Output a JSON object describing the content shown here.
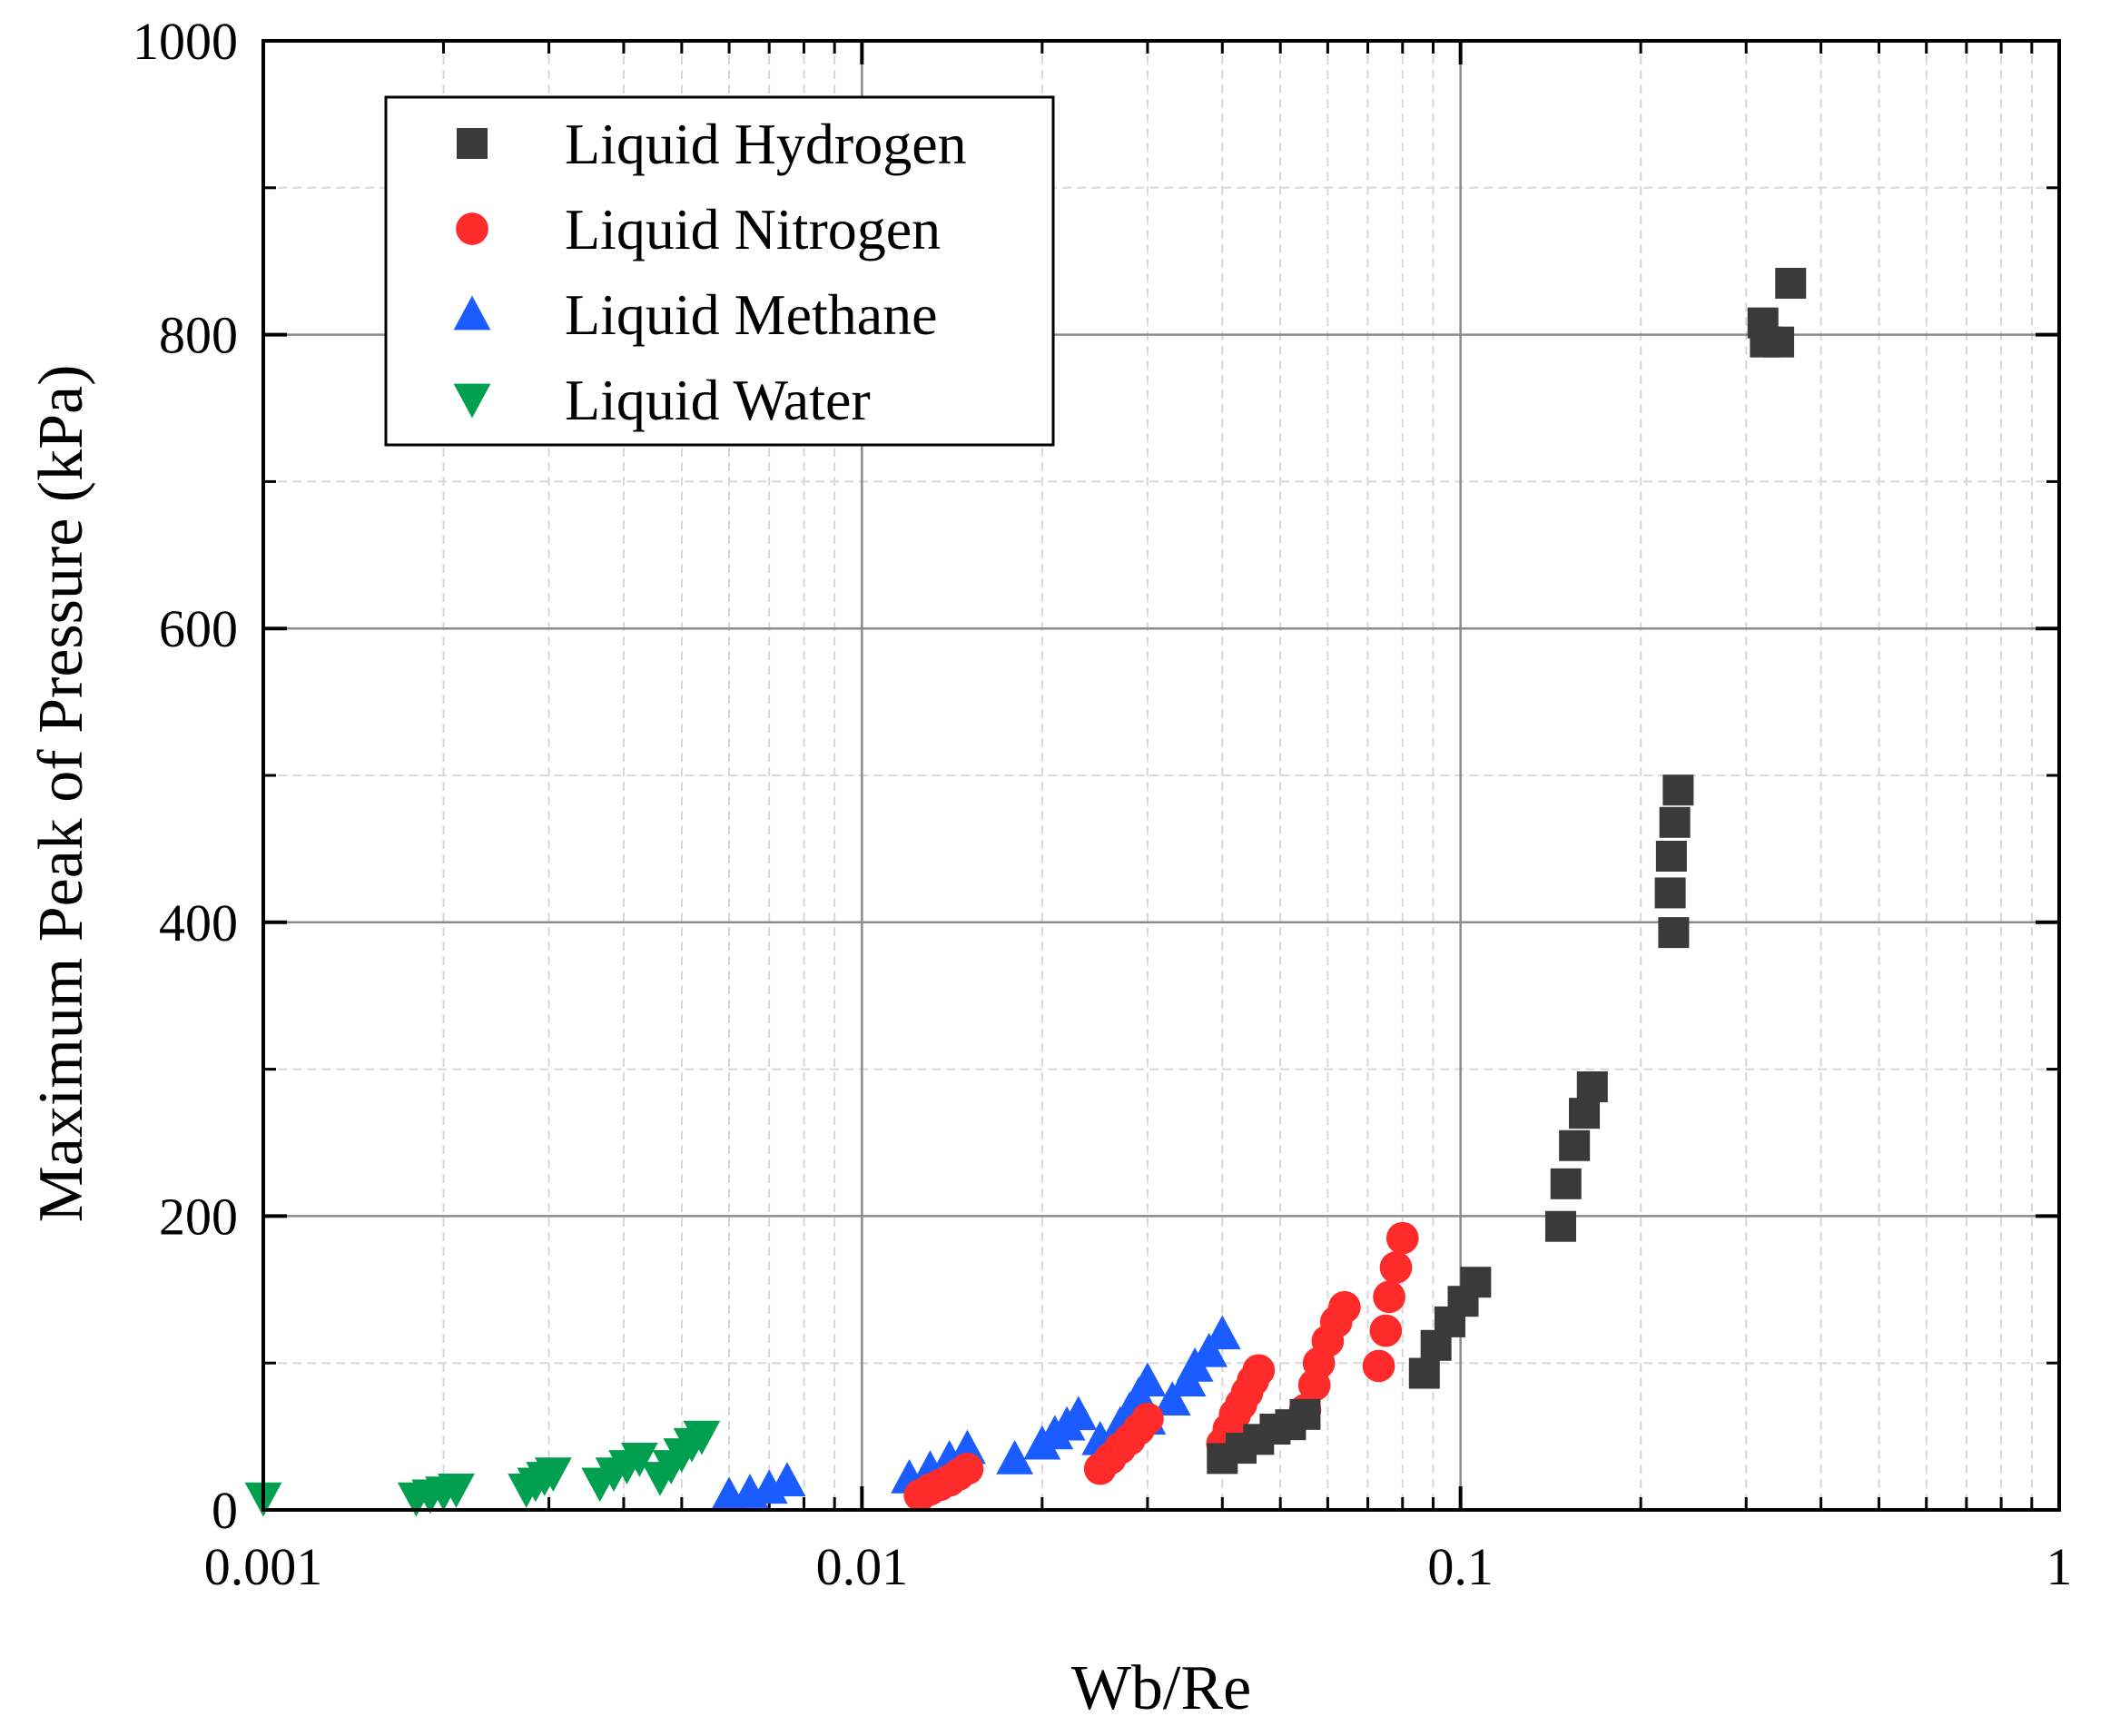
{
  "chart_data": {
    "type": "scatter",
    "title": "",
    "xlabel": "Wb/Re",
    "ylabel": "Maximum Peak of Pressure (kPa)",
    "xscale": "log",
    "xlim": [
      0.001,
      1
    ],
    "ylim": [
      0,
      1000
    ],
    "grid": true,
    "legend_position": "top-left",
    "x_ticks": [
      {
        "value": 0.001,
        "label": "0.001"
      },
      {
        "value": 0.01,
        "label": "0.01"
      },
      {
        "value": 0.1,
        "label": "0.1"
      },
      {
        "value": 1,
        "label": "1"
      }
    ],
    "y_ticks": [
      {
        "value": 0,
        "label": "0"
      },
      {
        "value": 200,
        "label": "200"
      },
      {
        "value": 400,
        "label": "400"
      },
      {
        "value": 600,
        "label": "600"
      },
      {
        "value": 800,
        "label": "800"
      },
      {
        "value": 1000,
        "label": "1000"
      }
    ],
    "series": [
      {
        "name": "Liquid Hydrogen",
        "marker": "square",
        "color": "#3a3a3a",
        "points": [
          [
            0.04,
            35
          ],
          [
            0.043,
            42
          ],
          [
            0.046,
            48
          ],
          [
            0.049,
            55
          ],
          [
            0.052,
            58
          ],
          [
            0.055,
            65
          ],
          [
            0.087,
            93
          ],
          [
            0.091,
            112
          ],
          [
            0.096,
            128
          ],
          [
            0.101,
            142
          ],
          [
            0.106,
            155
          ],
          [
            0.147,
            193
          ],
          [
            0.15,
            222
          ],
          [
            0.155,
            248
          ],
          [
            0.161,
            270
          ],
          [
            0.166,
            288
          ],
          [
            0.227,
            393
          ],
          [
            0.224,
            420
          ],
          [
            0.225,
            445
          ],
          [
            0.228,
            468
          ],
          [
            0.231,
            490
          ],
          [
            0.32,
            808
          ],
          [
            0.323,
            795
          ],
          [
            0.34,
            795
          ],
          [
            0.356,
            835
          ]
        ]
      },
      {
        "name": "Liquid Nitrogen",
        "marker": "circle",
        "color": "#ff2a2a",
        "points": [
          [
            0.0125,
            10
          ],
          [
            0.013,
            14
          ],
          [
            0.0135,
            17
          ],
          [
            0.014,
            20
          ],
          [
            0.0145,
            24
          ],
          [
            0.015,
            28
          ],
          [
            0.025,
            28
          ],
          [
            0.026,
            35
          ],
          [
            0.027,
            42
          ],
          [
            0.028,
            48
          ],
          [
            0.029,
            55
          ],
          [
            0.03,
            62
          ],
          [
            0.04,
            45
          ],
          [
            0.041,
            55
          ],
          [
            0.042,
            65
          ],
          [
            0.043,
            72
          ],
          [
            0.044,
            80
          ],
          [
            0.045,
            88
          ],
          [
            0.046,
            95
          ],
          [
            0.055,
            68
          ],
          [
            0.057,
            85
          ],
          [
            0.058,
            100
          ],
          [
            0.06,
            115
          ],
          [
            0.062,
            128
          ],
          [
            0.064,
            138
          ],
          [
            0.073,
            98
          ],
          [
            0.075,
            122
          ],
          [
            0.076,
            145
          ],
          [
            0.078,
            165
          ],
          [
            0.08,
            185
          ]
        ]
      },
      {
        "name": "Liquid Methane",
        "marker": "triangle-up",
        "color": "#1a5cff",
        "points": [
          [
            0.006,
            10
          ],
          [
            0.0065,
            12
          ],
          [
            0.007,
            15
          ],
          [
            0.0075,
            20
          ],
          [
            0.012,
            22
          ],
          [
            0.013,
            28
          ],
          [
            0.014,
            35
          ],
          [
            0.015,
            42
          ],
          [
            0.018,
            35
          ],
          [
            0.02,
            45
          ],
          [
            0.021,
            52
          ],
          [
            0.022,
            58
          ],
          [
            0.023,
            65
          ],
          [
            0.025,
            48
          ],
          [
            0.027,
            58
          ],
          [
            0.028,
            68
          ],
          [
            0.029,
            78
          ],
          [
            0.03,
            88
          ],
          [
            0.03,
            62
          ],
          [
            0.033,
            75
          ],
          [
            0.035,
            88
          ],
          [
            0.036,
            98
          ],
          [
            0.038,
            108
          ],
          [
            0.04,
            120
          ]
        ]
      },
      {
        "name": "Liquid Water",
        "marker": "triangle-down",
        "color": "#00a050",
        "points": [
          [
            0.001,
            8
          ],
          [
            0.0018,
            8
          ],
          [
            0.0019,
            10
          ],
          [
            0.002,
            12
          ],
          [
            0.0021,
            14
          ],
          [
            0.00275,
            14
          ],
          [
            0.00285,
            18
          ],
          [
            0.00295,
            22
          ],
          [
            0.00305,
            25
          ],
          [
            0.00365,
            18
          ],
          [
            0.00385,
            25
          ],
          [
            0.00405,
            30
          ],
          [
            0.00425,
            35
          ],
          [
            0.0046,
            22
          ],
          [
            0.0048,
            30
          ],
          [
            0.005,
            38
          ],
          [
            0.0052,
            45
          ],
          [
            0.0054,
            50
          ]
        ]
      }
    ]
  }
}
